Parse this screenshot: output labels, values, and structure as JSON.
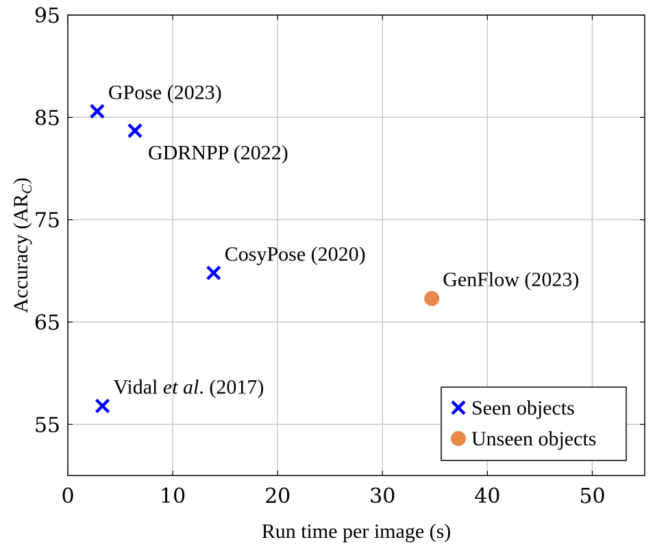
{
  "chart_data": {
    "type": "scatter",
    "xlabel": "Run time per image (s)",
    "ylabel": "Accuracy (AR",
    "ylabel_sub": "C",
    "ylabel_close": ")",
    "xlim": [
      0,
      55
    ],
    "ylim": [
      50,
      95
    ],
    "xticks": [
      0,
      10,
      20,
      30,
      40,
      50
    ],
    "yticks": [
      55,
      65,
      75,
      85,
      95
    ],
    "grid": true,
    "legend_position": "bottom-right",
    "series": [
      {
        "name": "Seen objects",
        "marker": "x",
        "color": "#0000ff",
        "points": [
          {
            "x": 2.8,
            "y": 85.6,
            "label": "GPose (2023)",
            "label_pos": "above-right"
          },
          {
            "x": 6.4,
            "y": 83.7,
            "label": "GDRNPP (2022)",
            "label_pos": "below-right"
          },
          {
            "x": 13.9,
            "y": 69.8,
            "label": "CosyPose (2020)",
            "label_pos": "above-right"
          },
          {
            "x": 3.3,
            "y": 56.8,
            "label_parts": [
              "Vidal ",
              "et al",
              ". (2017)"
            ],
            "label_pos": "above-right"
          }
        ]
      },
      {
        "name": "Unseen objects",
        "marker": "circle",
        "color": "#e8894a",
        "points": [
          {
            "x": 34.7,
            "y": 67.3,
            "label": "GenFlow (2023)",
            "label_pos": "above-right"
          }
        ]
      }
    ]
  }
}
